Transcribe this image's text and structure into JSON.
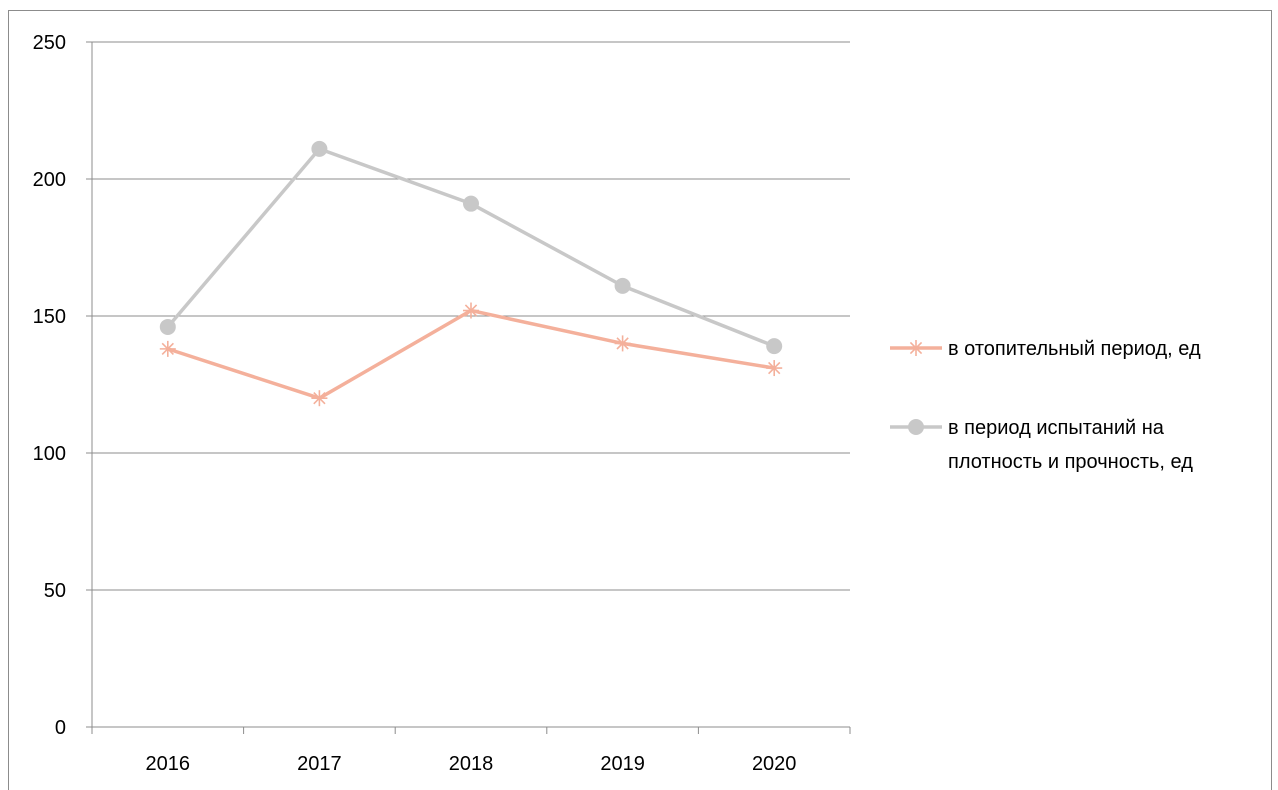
{
  "chart_data": {
    "type": "line",
    "categories": [
      "2016",
      "2017",
      "2018",
      "2019",
      "2020"
    ],
    "series": [
      {
        "name": "в отопительный период, ед",
        "values": [
          138,
          120,
          152,
          140,
          131
        ],
        "color": "#f4b09b",
        "marker": "asterisk"
      },
      {
        "name": "в период испытаний на плотность и прочность, ед",
        "name_lines": [
          "в период испытаний на",
          "плотность и прочность, ед"
        ],
        "values": [
          146,
          211,
          191,
          161,
          139
        ],
        "color": "#c8c8c8",
        "marker": "circle"
      }
    ],
    "y_ticks": [
      "0",
      "50",
      "100",
      "150",
      "200",
      "250"
    ],
    "ylim": [
      0,
      250
    ],
    "grid": true,
    "legend_position": "right"
  }
}
